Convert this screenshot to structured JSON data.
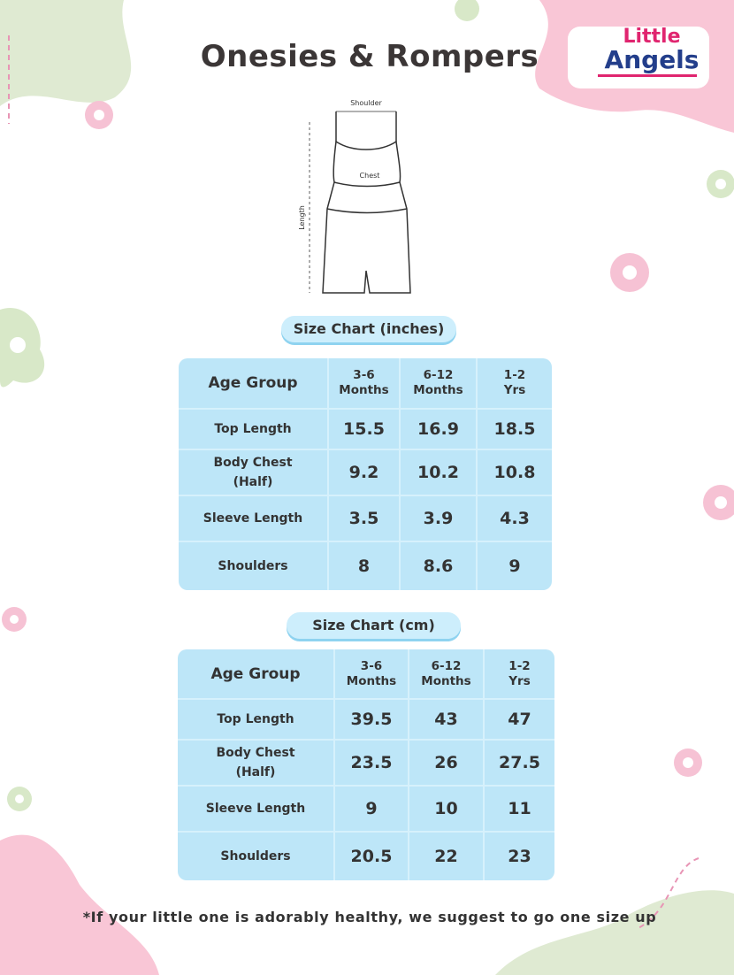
{
  "title": "Onesies & Rompers",
  "logo": {
    "line1": "Little",
    "line2": "Angels"
  },
  "diagram": {
    "shoulder": "Shoulder",
    "chest": "Chest",
    "length": "Length"
  },
  "charts": [
    {
      "title": "Size Chart (inches)",
      "headers": [
        "Age Group",
        "3-6\nMonths",
        "6-12\nMonths",
        "1-2\nYrs"
      ],
      "rows": [
        [
          "Top Length",
          "15.5",
          "16.9",
          "18.5"
        ],
        [
          "Body Chest\n(Half)",
          "9.2",
          "10.2",
          "10.8"
        ],
        [
          "Sleeve Length",
          "3.5",
          "3.9",
          "4.3"
        ],
        [
          "Shoulders",
          "8",
          "8.6",
          "9"
        ]
      ]
    },
    {
      "title": "Size Chart (cm)",
      "headers": [
        "Age Group",
        "3-6\nMonths",
        "6-12\nMonths",
        "1-2\nYrs"
      ],
      "rows": [
        [
          "Top Length",
          "39.5",
          "43",
          "47"
        ],
        [
          "Body Chest\n(Half)",
          "23.5",
          "26",
          "27.5"
        ],
        [
          "Sleeve Length",
          "9",
          "10",
          "11"
        ],
        [
          "Shoulders",
          "20.5",
          "22",
          "23"
        ]
      ]
    }
  ],
  "footnote": "*If your little one is adorably healthy, we suggest to go one size up",
  "colors": {
    "table": "#bde6f8",
    "pill": "#cdeefc",
    "pink": "#f9c6d6",
    "green": "#d8e8c8"
  }
}
